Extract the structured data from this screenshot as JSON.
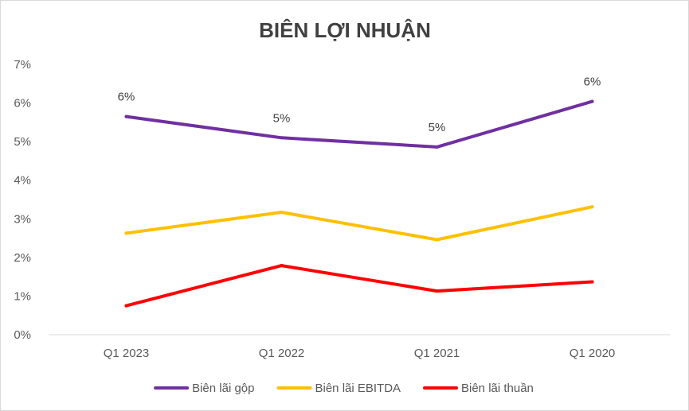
{
  "chart_data": {
    "type": "line",
    "title": "BIÊN LỢI NHUẬN",
    "xlabel": "",
    "ylabel": "",
    "categories": [
      "Q1 2023",
      "Q1 2022",
      "Q1 2021",
      "Q1 2020"
    ],
    "ylim": [
      0,
      0.07
    ],
    "yticks": [
      0,
      0.01,
      0.02,
      0.03,
      0.04,
      0.05,
      0.06,
      0.07
    ],
    "ytick_labels": [
      "0%",
      "1%",
      "2%",
      "3%",
      "4%",
      "5%",
      "6%",
      "7%"
    ],
    "grid": false,
    "legend_position": "bottom",
    "series": [
      {
        "name": "Biên lãi gộp",
        "color": "#7030a0",
        "values": [
          0.0565,
          0.051,
          0.0486,
          0.0604
        ],
        "data_labels": [
          "6%",
          "5%",
          "5%",
          "6%"
        ]
      },
      {
        "name": "Biên lãi EBITDA",
        "color": "#ffc000",
        "values": [
          0.0263,
          0.0317,
          0.0246,
          0.0331
        ]
      },
      {
        "name": "Biên lãi thuần",
        "color": "#ff0000",
        "values": [
          0.0075,
          0.0179,
          0.0113,
          0.0137
        ]
      }
    ]
  }
}
